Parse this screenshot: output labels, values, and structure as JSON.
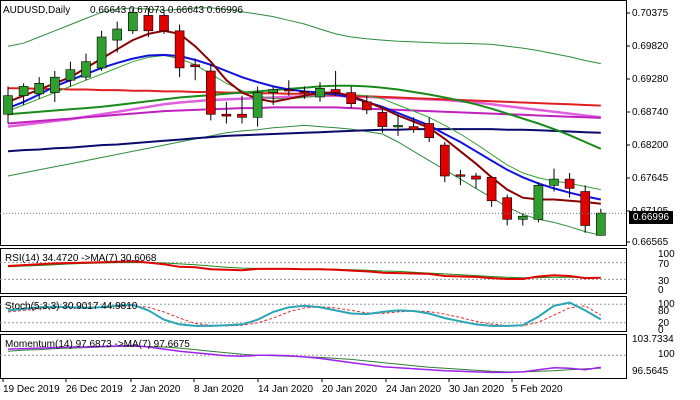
{
  "symbol_label": "AUDUSD,Daily",
  "ohlc_label": "0.66643 0.67073 0.66643 0.66996",
  "current_price": "0.66996",
  "rsi_label": "RSI(14) 34.4720 ->MA(7) 30.6068",
  "stoch_label": "Stoch(5,3,3) 30.9017 44.9810",
  "momentum_label": "Momentum(14) 97.6873 ->MA(7) 97.6675",
  "price_axis": [
    "0.70375",
    "0.69820",
    "0.69280",
    "0.68740",
    "0.68200",
    "0.67645",
    "0.67105",
    "0.66565"
  ],
  "rsi_axis": [
    "100",
    "70",
    "30",
    "0"
  ],
  "stoch_axis": [
    "100",
    "80",
    "20",
    "0"
  ],
  "momentum_axis": [
    "103.7334",
    "100",
    "96.5645"
  ],
  "x_axis_labels": [
    "19 Dec 2019",
    "26 Dec 2019",
    "2 Jan 2020",
    "8 Jan 2020",
    "14 Jan 2020",
    "20 Jan 2020",
    "24 Jan 2020",
    "30 Jan 2020",
    "5 Feb 2020"
  ],
  "colors": {
    "bull": "#2e9e2e",
    "bear": "#e00000",
    "ma_blue": "#1010e0",
    "ma_darkred": "#8b0000",
    "ma_green": "#1a8a1a",
    "ma_red": "#e02020",
    "ma_pink": "#e060e0",
    "ma_magenta": "#c020c0",
    "ma_navy": "#0a0a6e",
    "band": "#2e8b3e",
    "stoch_main": "#2aa5b5",
    "stoch_signal": "#e03030",
    "momentum_main": "#a020f0",
    "momentum_signal": "#2e7d32"
  },
  "chart_data": {
    "type": "candlestick",
    "candles": [
      {
        "o": 0.686,
        "h": 0.6905,
        "l": 0.6845,
        "c": 0.689
      },
      {
        "o": 0.689,
        "h": 0.691,
        "l": 0.6875,
        "c": 0.6905
      },
      {
        "o": 0.6893,
        "h": 0.692,
        "l": 0.6885,
        "c": 0.691
      },
      {
        "o": 0.6895,
        "h": 0.693,
        "l": 0.688,
        "c": 0.692
      },
      {
        "o": 0.6915,
        "h": 0.6945,
        "l": 0.6905,
        "c": 0.6932
      },
      {
        "o": 0.692,
        "h": 0.6958,
        "l": 0.6915,
        "c": 0.6945
      },
      {
        "o": 0.6935,
        "h": 0.6995,
        "l": 0.693,
        "c": 0.6985
      },
      {
        "o": 0.698,
        "h": 0.701,
        "l": 0.696,
        "c": 0.6998
      },
      {
        "o": 0.6995,
        "h": 0.703,
        "l": 0.699,
        "c": 0.7025
      },
      {
        "o": 0.702,
        "h": 0.7032,
        "l": 0.6985,
        "c": 0.6995
      },
      {
        "o": 0.702,
        "h": 0.7025,
        "l": 0.699,
        "c": 0.6995
      },
      {
        "o": 0.6995,
        "h": 0.7005,
        "l": 0.692,
        "c": 0.6935
      },
      {
        "o": 0.694,
        "h": 0.695,
        "l": 0.6915,
        "c": 0.6937
      },
      {
        "o": 0.693,
        "h": 0.694,
        "l": 0.685,
        "c": 0.686
      },
      {
        "o": 0.686,
        "h": 0.688,
        "l": 0.6845,
        "c": 0.6857
      },
      {
        "o": 0.686,
        "h": 0.689,
        "l": 0.6845,
        "c": 0.6855
      },
      {
        "o": 0.6855,
        "h": 0.6905,
        "l": 0.684,
        "c": 0.6895
      },
      {
        "o": 0.6895,
        "h": 0.6905,
        "l": 0.6875,
        "c": 0.69
      },
      {
        "o": 0.69,
        "h": 0.6915,
        "l": 0.689,
        "c": 0.6898
      },
      {
        "o": 0.6897,
        "h": 0.6905,
        "l": 0.6885,
        "c": 0.6895
      },
      {
        "o": 0.6888,
        "h": 0.6912,
        "l": 0.688,
        "c": 0.6902
      },
      {
        "o": 0.69,
        "h": 0.693,
        "l": 0.689,
        "c": 0.6895
      },
      {
        "o": 0.6895,
        "h": 0.6905,
        "l": 0.687,
        "c": 0.6877
      },
      {
        "o": 0.688,
        "h": 0.689,
        "l": 0.686,
        "c": 0.6867
      },
      {
        "o": 0.6863,
        "h": 0.687,
        "l": 0.683,
        "c": 0.684
      },
      {
        "o": 0.684,
        "h": 0.686,
        "l": 0.6825,
        "c": 0.6842
      },
      {
        "o": 0.684,
        "h": 0.6855,
        "l": 0.683,
        "c": 0.6835
      },
      {
        "o": 0.6845,
        "h": 0.6855,
        "l": 0.6815,
        "c": 0.6822
      },
      {
        "o": 0.681,
        "h": 0.6815,
        "l": 0.675,
        "c": 0.676
      },
      {
        "o": 0.6762,
        "h": 0.677,
        "l": 0.6745,
        "c": 0.676
      },
      {
        "o": 0.676,
        "h": 0.6765,
        "l": 0.674,
        "c": 0.6755
      },
      {
        "o": 0.6758,
        "h": 0.676,
        "l": 0.671,
        "c": 0.672
      },
      {
        "o": 0.6725,
        "h": 0.673,
        "l": 0.668,
        "c": 0.669
      },
      {
        "o": 0.669,
        "h": 0.67,
        "l": 0.668,
        "c": 0.6695
      },
      {
        "o": 0.669,
        "h": 0.675,
        "l": 0.6685,
        "c": 0.6745
      },
      {
        "o": 0.6745,
        "h": 0.6772,
        "l": 0.6735,
        "c": 0.6755
      },
      {
        "o": 0.6755,
        "h": 0.6765,
        "l": 0.6725,
        "c": 0.674
      },
      {
        "o": 0.6735,
        "h": 0.6745,
        "l": 0.6668,
        "c": 0.668
      },
      {
        "o": 0.6664,
        "h": 0.6707,
        "l": 0.6664,
        "c": 0.67
      }
    ],
    "bands": {
      "upper": [
        0.697,
        0.6975,
        0.6985,
        0.6995,
        0.7005,
        0.7015,
        0.7025,
        0.703,
        0.7032,
        0.703,
        0.7028,
        0.703,
        0.7032,
        0.7032,
        0.703,
        0.7026,
        0.7022,
        0.7018,
        0.7012,
        0.7006,
        0.6998,
        0.699,
        0.6985,
        0.6982,
        0.698,
        0.6978,
        0.6977,
        0.6976,
        0.6975,
        0.6975,
        0.6974,
        0.6973,
        0.697,
        0.6967,
        0.6963,
        0.6958,
        0.6953,
        0.6947,
        0.6942
      ],
      "lower": [
        0.676,
        0.6765,
        0.677,
        0.6775,
        0.678,
        0.6785,
        0.679,
        0.6795,
        0.68,
        0.6805,
        0.681,
        0.6815,
        0.682,
        0.6825,
        0.683,
        0.6833,
        0.6835,
        0.6838,
        0.684,
        0.6842,
        0.684,
        0.6838,
        0.6836,
        0.6832,
        0.6828,
        0.6815,
        0.68,
        0.6785,
        0.677,
        0.6755,
        0.674,
        0.6725,
        0.671,
        0.6698,
        0.669,
        0.6685,
        0.6678,
        0.667,
        0.6664
      ]
    },
    "ma": {
      "blue": [
        0.687,
        0.688,
        0.6892,
        0.6905,
        0.6915,
        0.6925,
        0.6935,
        0.6943,
        0.695,
        0.6955,
        0.6956,
        0.6954,
        0.6948,
        0.694,
        0.693,
        0.692,
        0.6912,
        0.6905,
        0.69,
        0.6897,
        0.6895,
        0.6892,
        0.6887,
        0.688,
        0.6872,
        0.6862,
        0.6852,
        0.6842,
        0.6828,
        0.6815,
        0.68,
        0.6785,
        0.677,
        0.6758,
        0.6748,
        0.674,
        0.6733,
        0.6727,
        0.6722
      ],
      "darkred": [
        0.688,
        0.689,
        0.69,
        0.691,
        0.692,
        0.6935,
        0.695,
        0.6965,
        0.698,
        0.699,
        0.6995,
        0.699,
        0.697,
        0.6945,
        0.6915,
        0.6895,
        0.6885,
        0.688,
        0.6885,
        0.689,
        0.6895,
        0.6895,
        0.689,
        0.688,
        0.687,
        0.6858,
        0.6848,
        0.6838,
        0.682,
        0.68,
        0.678,
        0.6758,
        0.6738,
        0.6725,
        0.6722,
        0.6722,
        0.672,
        0.6718,
        0.6715
      ],
      "green": [
        0.6865,
        0.6875,
        0.6885,
        0.6895,
        0.6905,
        0.6915,
        0.6925,
        0.6935,
        0.6945,
        0.6952,
        0.6955,
        0.695,
        0.694,
        0.6925,
        0.691,
        0.6898,
        0.689,
        0.6885,
        0.6885,
        0.6887,
        0.689,
        0.6893,
        0.6892,
        0.689,
        0.6885,
        0.6875,
        0.6865,
        0.6855,
        0.6842,
        0.6828,
        0.6812,
        0.6795,
        0.6778,
        0.6765,
        0.6757,
        0.6752,
        0.6748,
        0.6743,
        0.6738
      ],
      "ma_green": [
        0.686,
        0.6862,
        0.6864,
        0.6866,
        0.6868,
        0.687,
        0.6872,
        0.6875,
        0.6878,
        0.6881,
        0.6884,
        0.6887,
        0.6889,
        0.6891,
        0.6893,
        0.6895,
        0.6897,
        0.6899,
        0.6901,
        0.6903,
        0.6905,
        0.6906,
        0.6906,
        0.6905,
        0.6903,
        0.69,
        0.6896,
        0.6892,
        0.6887,
        0.6882,
        0.6876,
        0.6869,
        0.6861,
        0.6853,
        0.6845,
        0.6836,
        0.6826,
        0.6815,
        0.6804
      ],
      "red": [
        0.6902,
        0.6902,
        0.6901,
        0.6901,
        0.69,
        0.69,
        0.6899,
        0.6899,
        0.6898,
        0.6898,
        0.6897,
        0.6897,
        0.6896,
        0.6896,
        0.6895,
        0.6895,
        0.6894,
        0.6894,
        0.6893,
        0.6893,
        0.6892,
        0.6891,
        0.689,
        0.6889,
        0.6888,
        0.6887,
        0.6886,
        0.6885,
        0.6884,
        0.6883,
        0.6882,
        0.6881,
        0.688,
        0.6879,
        0.6878,
        0.6877,
        0.6876,
        0.6875,
        0.6874
      ],
      "pink": [
        0.684,
        0.6843,
        0.6846,
        0.6849,
        0.6852,
        0.6856,
        0.686,
        0.6864,
        0.6868,
        0.6872,
        0.6876,
        0.6879,
        0.6881,
        0.6883,
        0.6884,
        0.6885,
        0.6886,
        0.6887,
        0.6888,
        0.6889,
        0.689,
        0.689,
        0.6889,
        0.6888,
        0.6887,
        0.6886,
        0.6885,
        0.6884,
        0.6883,
        0.6881,
        0.6879,
        0.6876,
        0.6873,
        0.687,
        0.6867,
        0.6864,
        0.6861,
        0.6858,
        0.6855
      ],
      "magenta": [
        0.6845,
        0.6847,
        0.6849,
        0.6851,
        0.6853,
        0.6855,
        0.6857,
        0.6859,
        0.6861,
        0.6863,
        0.6865,
        0.6866,
        0.6867,
        0.6868,
        0.6869,
        0.687,
        0.687,
        0.6871,
        0.6871,
        0.6871,
        0.6871,
        0.6871,
        0.687,
        0.6869,
        0.6868,
        0.6867,
        0.6866,
        0.6865,
        0.6864,
        0.6863,
        0.6862,
        0.6861,
        0.686,
        0.6859,
        0.6858,
        0.6857,
        0.6856,
        0.6855,
        0.6854
      ],
      "navy": [
        0.68,
        0.6802,
        0.6803,
        0.6805,
        0.6806,
        0.6808,
        0.681,
        0.6811,
        0.6813,
        0.6815,
        0.6817,
        0.6819,
        0.6821,
        0.6823,
        0.6825,
        0.6826,
        0.6827,
        0.6828,
        0.6829,
        0.683,
        0.6831,
        0.6832,
        0.6833,
        0.6834,
        0.6835,
        0.6835,
        0.6836,
        0.6836,
        0.6836,
        0.6836,
        0.6836,
        0.6836,
        0.6835,
        0.6835,
        0.6834,
        0.6833,
        0.6832,
        0.6831,
        0.683
      ]
    },
    "rsi": [
      62,
      64,
      66,
      68,
      69,
      70,
      71,
      72,
      73,
      70,
      66,
      60,
      59,
      54,
      53,
      52,
      55,
      55,
      55,
      54,
      54,
      53,
      51,
      49,
      46,
      45,
      44,
      43,
      38,
      37,
      36,
      33,
      31,
      31,
      37,
      40,
      38,
      33,
      34
    ],
    "rsi_ma": [
      60,
      62,
      63,
      65,
      67,
      68,
      69,
      70,
      70,
      70,
      69,
      67,
      65,
      62,
      59,
      57,
      56,
      55,
      55,
      55,
      55,
      54,
      53,
      52,
      50,
      49,
      47,
      45,
      43,
      41,
      39,
      37,
      35,
      34,
      34,
      35,
      35,
      34,
      34
    ],
    "stoch_main": [
      60,
      65,
      70,
      72,
      70,
      68,
      70,
      75,
      78,
      60,
      30,
      15,
      10,
      10,
      12,
      15,
      30,
      55,
      70,
      75,
      70,
      60,
      50,
      48,
      55,
      60,
      58,
      50,
      35,
      25,
      15,
      10,
      10,
      12,
      40,
      75,
      85,
      60,
      31
    ],
    "stoch_signal": [
      55,
      60,
      65,
      68,
      70,
      70,
      70,
      72,
      75,
      70,
      55,
      35,
      18,
      12,
      10,
      12,
      20,
      35,
      55,
      68,
      72,
      68,
      60,
      52,
      50,
      55,
      58,
      56,
      48,
      37,
      25,
      16,
      11,
      10,
      22,
      45,
      68,
      75,
      45
    ],
    "momentum": [
      101.2,
      101.3,
      101.4,
      101.5,
      101.6,
      101.6,
      101.7,
      101.8,
      101.9,
      101.6,
      101.2,
      100.8,
      100.5,
      100.2,
      99.9,
      99.8,
      100.0,
      100.0,
      99.9,
      99.7,
      99.4,
      99.0,
      98.6,
      98.2,
      97.8,
      97.6,
      97.4,
      97.2,
      97.0,
      96.9,
      96.8,
      96.7,
      96.7,
      96.8,
      97.2,
      97.6,
      97.5,
      97.2,
      97.7
    ],
    "momentum_ma": [
      100.8,
      101.0,
      101.1,
      101.3,
      101.4,
      101.5,
      101.6,
      101.7,
      101.7,
      101.7,
      101.6,
      101.4,
      101.1,
      100.8,
      100.5,
      100.2,
      100.0,
      99.9,
      99.8,
      99.7,
      99.6,
      99.4,
      99.2,
      98.9,
      98.6,
      98.3,
      98.0,
      97.7,
      97.5,
      97.3,
      97.1,
      96.9,
      96.8,
      96.8,
      96.9,
      97.0,
      97.2,
      97.4,
      97.5
    ]
  }
}
